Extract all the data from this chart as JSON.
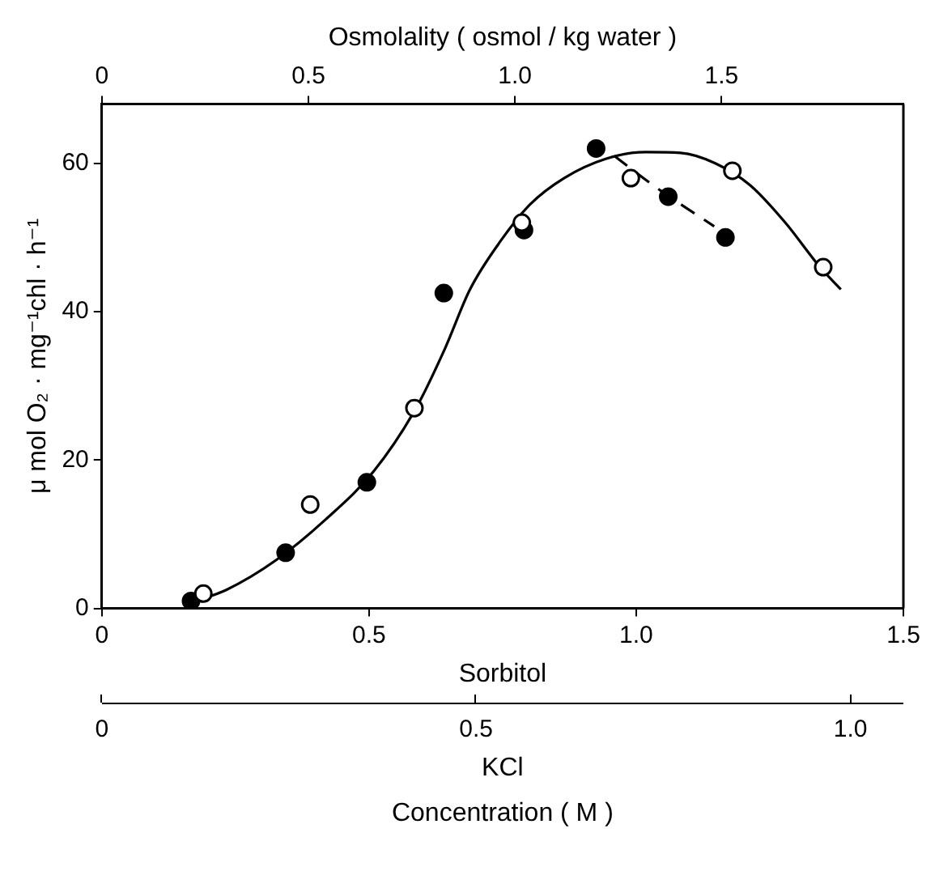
{
  "chart_data": [
    {
      "type": "scatter",
      "x2label": "Osmolality ( osmol / kg water )",
      "xlabel": "Sorbitol",
      "ylabel": "μ mol O₂ · mg⁻¹chl · h⁻¹",
      "xlim": [
        0,
        1.5
      ],
      "xticks": [
        0,
        0.5,
        {
          "value": 1,
          "label": "1.0"
        },
        1.5
      ],
      "x2lim": [
        0,
        1.94
      ],
      "x2ticks": [
        0,
        0.5,
        {
          "value": 1,
          "label": "1.0"
        },
        1.5
      ],
      "ylim": [
        0,
        68
      ],
      "yticks": [
        0,
        20,
        40,
        60
      ],
      "grid": false,
      "marker": "circle",
      "series": [
        {
          "color": "#000000",
          "x": [
            0.19,
            0.39,
            0.585,
            0.786,
            0.99,
            1.18,
            1.35
          ],
          "values": [
            2,
            14,
            27,
            52,
            58,
            59,
            46
          ]
        },
        {
          "color": "#000000",
          "x": [
            0.167,
            0.344,
            0.496,
            0.64,
            0.79,
            0.925,
            1.06,
            1.167
          ],
          "values": [
            1,
            7.5,
            17,
            42.5,
            51,
            62,
            55.5,
            50
          ]
        },
        {
          "type": "line",
          "marker": "none",
          "line_style": "solid",
          "color": "#000000",
          "x": [
            0.167,
            0.233,
            0.326,
            0.419,
            0.509,
            0.588,
            0.642,
            0.689,
            0.746,
            0.802,
            0.865,
            0.943,
            1.018,
            1.083,
            1.148,
            1.214,
            1.279,
            1.344,
            1.383
          ],
          "values": [
            0.8,
            2.5,
            6.5,
            12,
            18.5,
            27,
            35,
            43,
            49.5,
            54.5,
            58,
            60.6,
            61.5,
            61.4,
            60,
            57,
            52,
            46,
            43
          ]
        },
        {
          "type": "line",
          "marker": "none",
          "line_style": "dashed",
          "color": "#000000",
          "x": [
            0.959,
            1.042,
            1.146
          ],
          "values": [
            61,
            56.5,
            51.5
          ]
        }
      ]
    },
    {
      "type": "other",
      "xlabel": "KCl",
      "title": "Concentration ( M )",
      "annotations": [
        "0",
        "0.5",
        "1.0"
      ]
    }
  ]
}
